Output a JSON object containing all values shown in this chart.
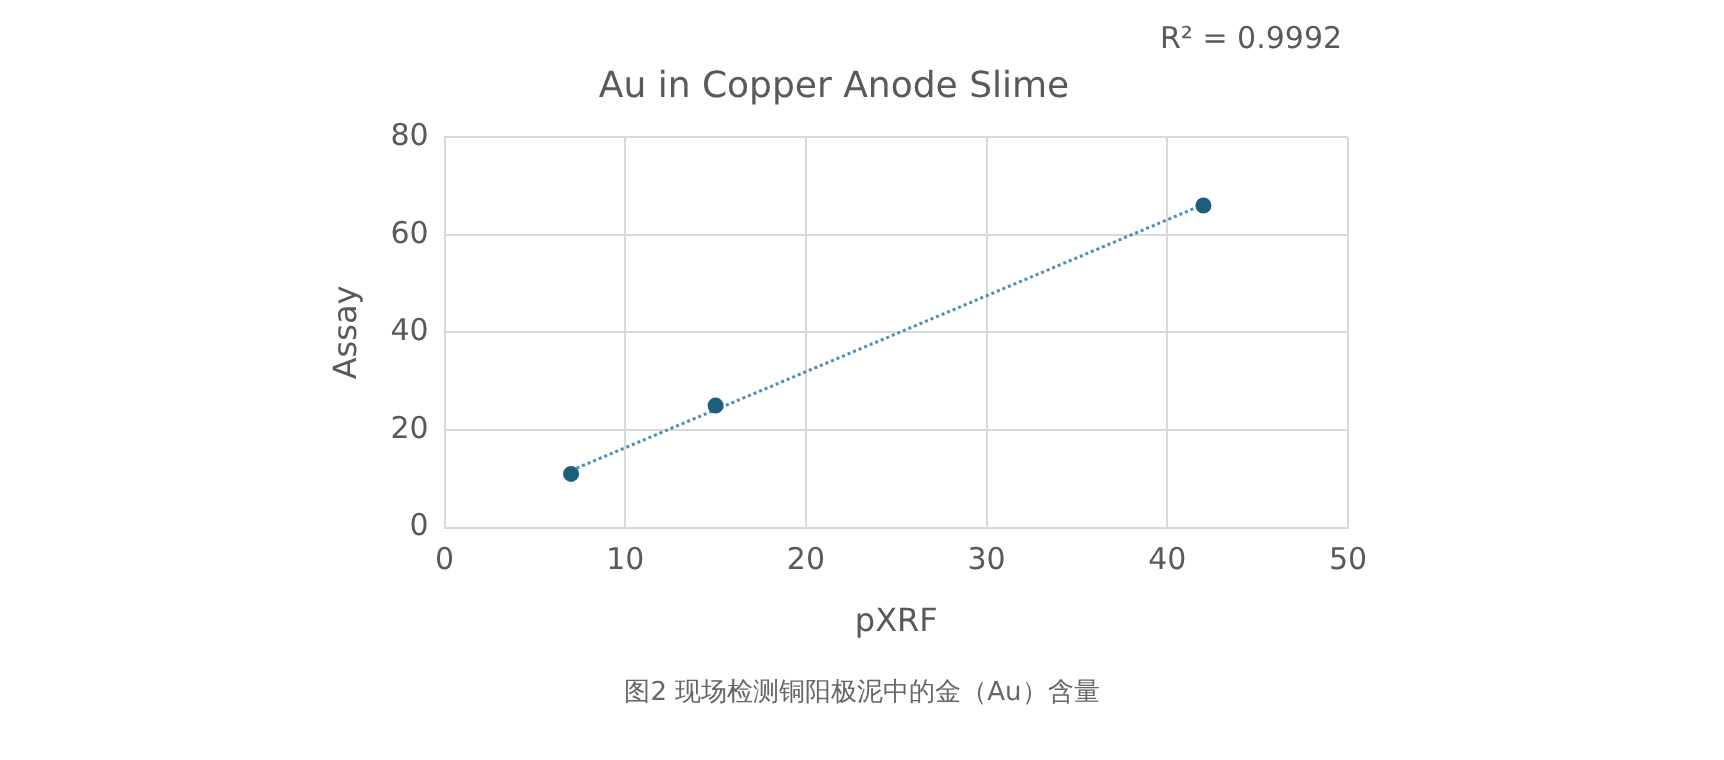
{
  "chart_data": {
    "type": "scatter",
    "title": "Au in Copper Anode Slime",
    "xlabel": "pXRF",
    "ylabel": "Assay",
    "xlim": [
      0,
      50
    ],
    "xticks": [
      0,
      10,
      20,
      30,
      40,
      50
    ],
    "ylim": [
      0,
      80
    ],
    "yticks": [
      0,
      20,
      40,
      60,
      80
    ],
    "grid": true,
    "legend": false,
    "marker": "circle",
    "series": [
      {
        "color": "#1b5e7e",
        "x": [
          7,
          15,
          42
        ],
        "values": [
          11,
          25,
          66
        ]
      },
      {
        "type": "line",
        "color": "#4a8fb3",
        "line_style": "dotted",
        "marker": "none",
        "x": [
          7,
          42
        ],
        "values": [
          11.7,
          66.2
        ]
      }
    ],
    "annotations": [
      "R² = 0.9992",
      "图2 现场检测铜阳极泥中的金（Au）含量"
    ]
  }
}
